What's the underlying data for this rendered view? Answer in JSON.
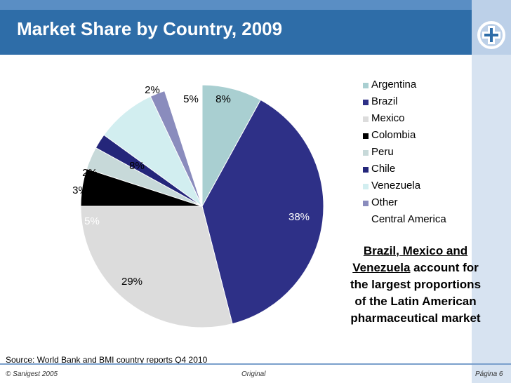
{
  "header": {
    "title": "Market Share by Country, 2009"
  },
  "chart_data": {
    "type": "pie",
    "start_angle_deg": 0,
    "slices": [
      {
        "label": "Argentina",
        "value": 8,
        "display": "8%",
        "color": "#a9cfd1"
      },
      {
        "label": "Brazil",
        "value": 38,
        "display": "38%",
        "color": "#2e3087"
      },
      {
        "label": "Mexico",
        "value": 29,
        "display": "29%",
        "color": "#dcdcdc"
      },
      {
        "label": "Colombia",
        "value": 5,
        "display": "5%",
        "color": "#000000"
      },
      {
        "label": "Peru",
        "value": 3,
        "display": "3%",
        "color": "#c7d9d9"
      },
      {
        "label": "Chile",
        "value": 2,
        "display": "2%",
        "color": "#24267a"
      },
      {
        "label": "Venezuela",
        "value": 8,
        "display": "8%",
        "color": "#d2eef0"
      },
      {
        "label": "Other",
        "value": 2,
        "display": "2%",
        "color": "#8a8cbd"
      },
      {
        "label": "Central America",
        "value": 5,
        "display": "5%",
        "color": "#ffffff"
      }
    ],
    "legend_position": "right"
  },
  "callout": {
    "highlight": "Brazil, Mexico and Venezuela",
    "rest": " account for the largest proportions of the Latin American pharmaceutical market"
  },
  "source": "Source: World Bank and BMI country reports Q4 2010",
  "footer": {
    "copyright": "© Sanigest 2005",
    "center": "Original",
    "page": "Página 6"
  }
}
